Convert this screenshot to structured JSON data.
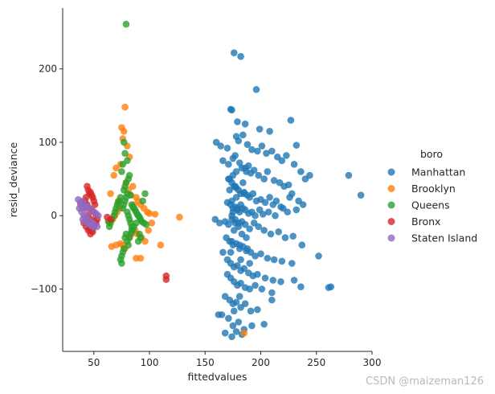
{
  "chart_data": {
    "type": "scatter",
    "title": "",
    "xlabel": "fittedvalues",
    "ylabel": "resid_deviance",
    "xlim": [
      22,
      300
    ],
    "ylim": [
      -185,
      283
    ],
    "xticks": [
      50,
      100,
      150,
      200,
      250,
      300
    ],
    "yticks": [
      -100,
      0,
      100,
      200
    ],
    "grid": false,
    "legend": {
      "title": "boro",
      "placement": "right"
    },
    "series": [
      {
        "name": "Manhattan",
        "color": "#1f77b4",
        "x": [
          176,
          182,
          196,
          173,
          174,
          179,
          186,
          199,
          208,
          227,
          232,
          160,
          164,
          170,
          178,
          180,
          184,
          188,
          192,
          197,
          201,
          205,
          210,
          215,
          219,
          223,
          230,
          236,
          240,
          244,
          279,
          290,
          166,
          171,
          175,
          177,
          181,
          183,
          187,
          189,
          191,
          194,
          198,
          203,
          206,
          212,
          217,
          221,
          225,
          228,
          172,
          174,
          176,
          178,
          180,
          182,
          185,
          188,
          190,
          193,
          196,
          200,
          204,
          208,
          211,
          214,
          218,
          226,
          234,
          238,
          170,
          173,
          175,
          177,
          179,
          181,
          184,
          186,
          189,
          192,
          195,
          199,
          202,
          207,
          213,
          220,
          224,
          232,
          159,
          163,
          168,
          171,
          174,
          177,
          180,
          183,
          186,
          190,
          194,
          198,
          203,
          209,
          216,
          222,
          229,
          237,
          252,
          169,
          172,
          175,
          178,
          181,
          184,
          187,
          191,
          195,
          200,
          206,
          212,
          219,
          228,
          166,
          170,
          173,
          176,
          179,
          182,
          185,
          189,
          193,
          197,
          204,
          211,
          218,
          170,
          173,
          176,
          179,
          182,
          186,
          190,
          195,
          201,
          210,
          230,
          236,
          168,
          172,
          175,
          178,
          182,
          186,
          191,
          197,
          261,
          263,
          165,
          171,
          175,
          180,
          185,
          192,
          203,
          210,
          162,
          168,
          174,
          178,
          183,
          176,
          181,
          174,
          175,
          177,
          179,
          180,
          182,
          174,
          176,
          178,
          183,
          185,
          187,
          172,
          174,
          177,
          181,
          184,
          188,
          171,
          173,
          175,
          178,
          182,
          186,
          190
        ],
        "y": [
          222,
          217,
          172,
          145,
          144,
          128,
          125,
          118,
          115,
          130,
          96,
          100,
          95,
          92,
          108,
          102,
          110,
          97,
          90,
          88,
          95,
          85,
          88,
          80,
          75,
          82,
          70,
          60,
          50,
          55,
          55,
          28,
          75,
          70,
          78,
          82,
          72,
          65,
          60,
          68,
          58,
          62,
          55,
          50,
          60,
          48,
          45,
          40,
          42,
          30,
          50,
          45,
          40,
          38,
          35,
          30,
          32,
          28,
          25,
          30,
          20,
          22,
          18,
          25,
          15,
          20,
          12,
          25,
          20,
          15,
          18,
          15,
          10,
          12,
          8,
          5,
          10,
          8,
          3,
          5,
          0,
          8,
          2,
          5,
          0,
          10,
          5,
          8,
          -5,
          -10,
          -8,
          -12,
          -5,
          -10,
          -15,
          -8,
          -12,
          -18,
          -10,
          -15,
          -20,
          -25,
          -22,
          -30,
          -28,
          -40,
          -55,
          -30,
          -35,
          -40,
          -38,
          -45,
          -42,
          -48,
          -50,
          -55,
          -52,
          -58,
          -60,
          -62,
          -65,
          -50,
          -60,
          -65,
          -70,
          -68,
          -75,
          -72,
          -78,
          -82,
          -80,
          -85,
          -88,
          -90,
          -80,
          -85,
          -90,
          -95,
          -92,
          -98,
          -100,
          -95,
          -100,
          -105,
          -88,
          -97,
          -110,
          -115,
          -120,
          -118,
          -125,
          -120,
          -130,
          -128,
          -98,
          -97,
          -135,
          -140,
          -150,
          -145,
          -155,
          -150,
          -148,
          -115,
          -135,
          -160,
          -165,
          -158,
          -162,
          -130,
          -110,
          0,
          5,
          -5,
          10,
          -10,
          15,
          20,
          -20,
          25,
          -25,
          30,
          -30,
          35,
          -35,
          40,
          -40,
          45,
          -45,
          50,
          -50,
          55,
          60,
          -60,
          65,
          -65
        ]
      },
      {
        "name": "Brooklyn",
        "color": "#ff7f0e",
        "x": [
          78,
          75,
          77,
          76,
          80,
          82,
          74,
          70,
          68,
          65,
          72,
          85,
          88,
          90,
          92,
          95,
          98,
          100,
          105,
          127,
          110,
          79,
          81,
          83,
          86,
          73,
          71,
          69,
          67,
          64,
          87,
          89,
          93,
          96,
          99,
          102,
          76,
          78,
          82,
          84,
          66,
          70,
          74,
          88,
          92,
          185
        ],
        "y": [
          148,
          120,
          115,
          105,
          95,
          80,
          70,
          65,
          55,
          30,
          20,
          40,
          25,
          20,
          15,
          10,
          5,
          3,
          2,
          -2,
          -40,
          45,
          35,
          28,
          15,
          10,
          5,
          0,
          -5,
          -10,
          -20,
          -25,
          -30,
          -35,
          -20,
          -10,
          -40,
          -45,
          -30,
          -25,
          -42,
          -40,
          -38,
          -58,
          -58,
          -160
        ]
      },
      {
        "name": "Queens",
        "color": "#2ca02c",
        "x": [
          79,
          77,
          78,
          80,
          76,
          75,
          82,
          81,
          79,
          78,
          77,
          80,
          83,
          74,
          73,
          72,
          84,
          85,
          86,
          87,
          88,
          89,
          90,
          91,
          92,
          93,
          95,
          97,
          71,
          70,
          69,
          68,
          66,
          65,
          64,
          63,
          94,
          96,
          79,
          78,
          77,
          76,
          80,
          81,
          82,
          83,
          84,
          85,
          79,
          78,
          80,
          81,
          77,
          76,
          75,
          82,
          83,
          84,
          86,
          88,
          90,
          92,
          91,
          75,
          74
        ],
        "y": [
          261,
          100,
          85,
          75,
          70,
          60,
          55,
          50,
          45,
          40,
          35,
          30,
          28,
          25,
          20,
          18,
          15,
          12,
          10,
          8,
          5,
          2,
          0,
          -2,
          -5,
          -8,
          -10,
          -12,
          15,
          10,
          5,
          0,
          -5,
          -10,
          -15,
          -8,
          20,
          30,
          25,
          20,
          15,
          10,
          5,
          0,
          -5,
          -10,
          -15,
          -20,
          -25,
          -30,
          -35,
          -40,
          -45,
          -50,
          -55,
          -30,
          -25,
          -20,
          -15,
          -10,
          -35,
          -30,
          -25,
          -65,
          -60
        ]
      },
      {
        "name": "Bronx",
        "color": "#d62728",
        "x": [
          44,
          45,
          46,
          47,
          48,
          49,
          50,
          51,
          43,
          42,
          44,
          46,
          48,
          50,
          52,
          53,
          45,
          47,
          49,
          51,
          41,
          43,
          46,
          48,
          50,
          52,
          45,
          47,
          49,
          115,
          115,
          62,
          65
        ],
        "y": [
          40,
          35,
          30,
          32,
          28,
          25,
          20,
          15,
          25,
          20,
          15,
          10,
          8,
          5,
          0,
          -5,
          0,
          -5,
          -8,
          -10,
          -10,
          -15,
          -18,
          -20,
          -15,
          -10,
          -20,
          -25,
          -22,
          -82,
          -87,
          -2,
          -5
        ]
      },
      {
        "name": "Staten Island",
        "color": "#9467bd",
        "x": [
          36,
          38,
          40,
          42,
          44,
          46,
          48,
          50,
          52,
          54,
          37,
          39,
          41,
          43,
          45,
          47,
          49,
          51,
          53,
          40,
          42,
          44,
          46,
          48,
          50,
          38,
          40,
          42,
          44
        ],
        "y": [
          22,
          18,
          20,
          15,
          12,
          10,
          8,
          5,
          3,
          0,
          10,
          5,
          0,
          -2,
          -5,
          -8,
          -10,
          -12,
          -15,
          -5,
          -8,
          -10,
          -12,
          -14,
          -16,
          15,
          10,
          12,
          8
        ]
      }
    ]
  },
  "watermark": "CSDN @maizeman126"
}
